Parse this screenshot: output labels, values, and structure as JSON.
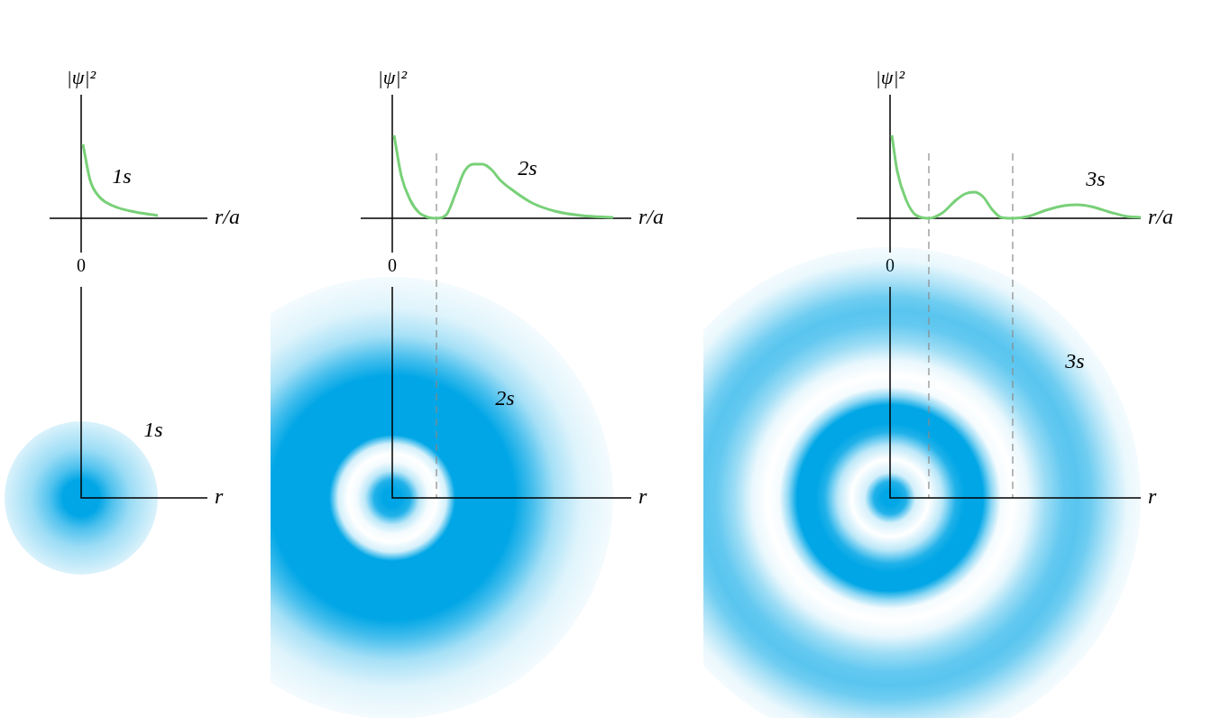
{
  "chart_data": [
    {
      "type": "line",
      "x_label": "r/a",
      "y_label": "|ψ|²",
      "x": [
        0.2,
        1,
        2,
        3.5,
        5.5,
        8.5
      ],
      "series": [
        {
          "name": "1s",
          "color": "#78d078",
          "values": [
            8.2,
            4.2,
            2.4,
            1.4,
            0.8,
            0.3
          ]
        }
      ],
      "xlim": [
        -3.5,
        14
      ],
      "ylim": [
        -3.8,
        13.7
      ],
      "xticks": [
        0
      ],
      "yticks": [],
      "tick_labels": "x",
      "nodes": [],
      "density": {
        "label": "1s",
        "x_label": "r",
        "color": "#00a6e6"
      }
    },
    {
      "type": "line",
      "x_label": "r/a",
      "y_label": "|ψ|²",
      "x": [
        0.2,
        1,
        2,
        3,
        4,
        4.9,
        6,
        7,
        8,
        9,
        10,
        11,
        12,
        13.5,
        15.5,
        18,
        21,
        24.5
      ],
      "series": [
        {
          "name": "2s",
          "color": "#78d078",
          "values": [
            9.2,
            4.7,
            2.0,
            0.6,
            0.1,
            0,
            0.4,
            2.7,
            5.2,
            6.0,
            6.0,
            5.4,
            4.2,
            3.0,
            1.7,
            0.8,
            0.3,
            0.1
          ]
        }
      ],
      "xlim": [
        -3.5,
        26.5
      ],
      "ylim": [
        -3.8,
        13.7
      ],
      "xticks": [
        0
      ],
      "yticks": [],
      "tick_labels": "x",
      "nodes": [
        4.9
      ],
      "density": {
        "label": "2s",
        "x_label": "r",
        "color": "#00a6e6"
      }
    },
    {
      "type": "line",
      "x_label": "r/a",
      "y_label": "|ψ|²",
      "x": [
        0.2,
        0.8,
        1.8,
        2.8,
        4.3,
        5.8,
        7.3,
        8.3,
        9.3,
        10.3,
        11.3,
        12.3,
        13.6,
        15.3,
        17.3,
        19.3,
        20.8,
        22.3,
        24.3,
        26.3,
        27.8
      ],
      "series": [
        {
          "name": "3s",
          "color": "#78d078",
          "values": [
            9.2,
            5.2,
            2.0,
            0.4,
            0,
            0.6,
            2.0,
            2.7,
            2.9,
            2.4,
            1.0,
            0.1,
            0,
            0.2,
            0.9,
            1.4,
            1.5,
            1.3,
            0.7,
            0.2,
            0.1
          ]
        }
      ],
      "xlim": [
        -3.7,
        27.8
      ],
      "ylim": [
        -3.8,
        13.7
      ],
      "xticks": [
        0
      ],
      "yticks": [],
      "tick_labels": "x",
      "nodes": [
        4.3,
        13.6
      ],
      "density": {
        "label": "3s",
        "x_label": "r",
        "color": "#00a6e6"
      }
    }
  ]
}
